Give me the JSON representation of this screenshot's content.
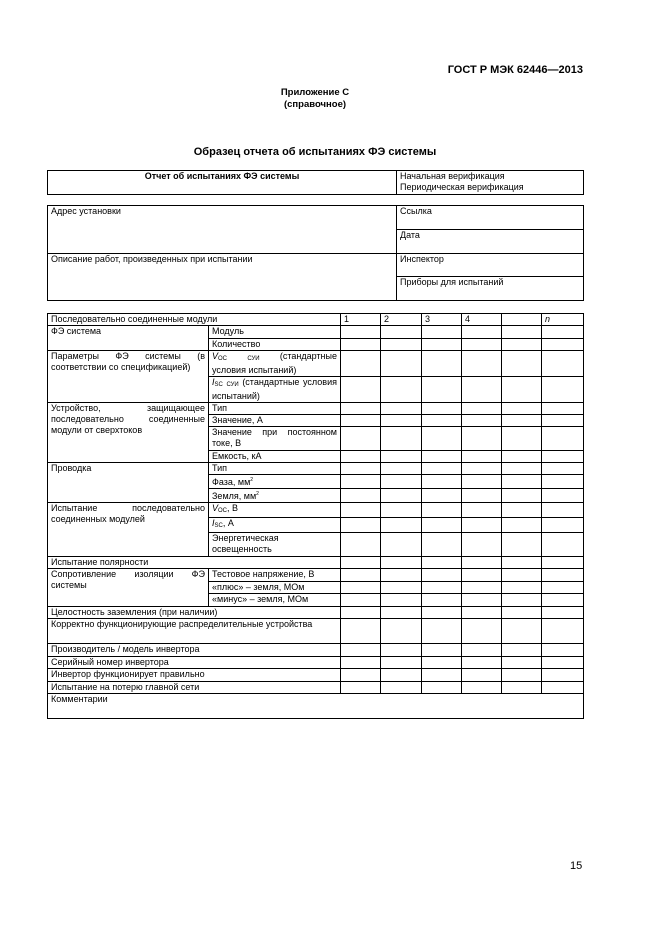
{
  "header": {
    "standard": "ГОСТ Р МЭК 62446—2013",
    "appendix": "Приложение С",
    "appendix_note": "(справочное)",
    "title": "Образец отчета об испытаниях ФЭ системы",
    "page_number": "15"
  },
  "report_header": {
    "left": "Отчет об испытаниях ФЭ системы",
    "right_1": "Начальная верификация",
    "right_2": "Периодическая верификация"
  },
  "info": {
    "address": "Адрес установки",
    "work_description": "Описание работ, произведенных при испытании",
    "reference": "Ссылка",
    "date": "Дата",
    "inspector": "Инспектор",
    "instruments": "Приборы для испытаний"
  },
  "main_table": {
    "header_label": "Последовательно соединенные модули",
    "columns": [
      "1",
      "2",
      "3",
      "4",
      "",
      "n"
    ],
    "rows": [
      {
        "label": "ФЭ система",
        "subs": [
          {
            "text": "Модуль",
            "h": 13
          },
          {
            "text": "Количество",
            "h": 12
          }
        ]
      },
      {
        "label": "Параметры ФЭ системы (в соответствии со спецификацией)",
        "subs": [
          {
            "sym": "V",
            "sub": "OC",
            "sub2": "СУИ",
            "text": "(стандартные условия испытаний)",
            "h": 24
          },
          {
            "sym": "I",
            "sub": "SC",
            "sub2": "СУИ",
            "text": "(стандартные условия испытаний)",
            "h": 25
          }
        ]
      },
      {
        "label": "Устройство, защищающее последовательно соединенные модули от сверхтоков",
        "subs": [
          {
            "text": "Тип",
            "h": 12
          },
          {
            "text": "Значение, А",
            "h": 12
          },
          {
            "text": "Значение при постоянном токе, В",
            "h": 24
          },
          {
            "text": "Емкость, кА",
            "h": 12
          }
        ]
      },
      {
        "label": "Проводка",
        "subs": [
          {
            "text": "Тип",
            "h": 12
          },
          {
            "text": "Фаза, мм",
            "sup": "2",
            "h": 13
          },
          {
            "text": "Земля, мм",
            "sup": "2",
            "h": 12
          }
        ]
      },
      {
        "label": "Испытание последовательно соединенных модулей",
        "subs": [
          {
            "sym": "V",
            "sub": "OC",
            "text": ", В",
            "h": 13
          },
          {
            "sym": "I",
            "sub": "SC",
            "text": ", А",
            "h": 12
          },
          {
            "text": "Энергетическая освещенность",
            "h": 24
          }
        ]
      },
      {
        "full": "Испытание полярности",
        "h": 12
      },
      {
        "label": "Сопротивление изоляции ФЭ системы",
        "subs": [
          {
            "text": "Тестовое напряжение, В",
            "h": 13
          },
          {
            "text": "«плюс» – земля, МОм",
            "h": 12
          },
          {
            "text": "«минус» – земля, МОм",
            "h": 13
          }
        ]
      },
      {
        "full": "Целостность заземления (при наличии)",
        "h": 12
      },
      {
        "full": "Корректно функционирующие распределительные устройства",
        "h": 25
      },
      {
        "full": "Производитель / модель инвертора",
        "h": 13
      },
      {
        "full": "Серийный номер инвертора",
        "h": 12
      },
      {
        "full": "Инвертор функционирует правильно",
        "h": 13
      },
      {
        "full": "Испытание на потерю главной сети",
        "h": 12
      }
    ],
    "comments": "Комментарии"
  }
}
